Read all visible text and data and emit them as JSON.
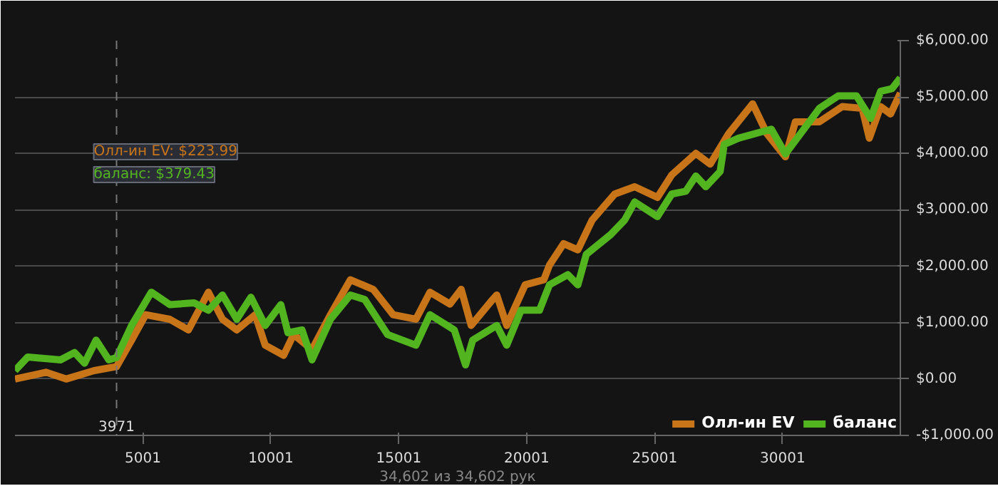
{
  "chart_data": {
    "type": "line",
    "xlim": [
      1,
      34602
    ],
    "ylim": [
      -1000,
      6000
    ],
    "xticks": [
      5001,
      10001,
      15001,
      20001,
      25001,
      30001
    ],
    "yticks": [
      {
        "value": -1000,
        "label": "-$1,000.00"
      },
      {
        "value": 0,
        "label": "$0.00"
      },
      {
        "value": 1000,
        "label": "$1,000.00"
      },
      {
        "value": 2000,
        "label": "$2,000.00"
      },
      {
        "value": 3000,
        "label": "$3,000.00"
      },
      {
        "value": 4000,
        "label": "$4,000.00"
      },
      {
        "value": 5000,
        "label": "$5,000.00"
      },
      {
        "value": 6000,
        "label": "$6,000.00"
      }
    ],
    "grid": "y",
    "legend": "bottom right",
    "line_style": "solid",
    "ref_lines": [
      {
        "axis": "x",
        "value": 3971,
        "label": "3971",
        "color": "#777777",
        "line_style": "dashed"
      }
    ],
    "annotations": [
      "Олл-ин EV: $223.99",
      "баланс: $379.43",
      "34,602 из 34,602 рук"
    ],
    "series": [
      {
        "name": "Олл-ин EV",
        "color": "#c8751a",
        "x": [
          1,
          1220,
          2000,
          3100,
          3971,
          4560,
          5110,
          6050,
          6780,
          7560,
          8110,
          8670,
          9390,
          9780,
          10500,
          10890,
          11610,
          12330,
          13110,
          14000,
          14780,
          15670,
          16220,
          17000,
          17440,
          17830,
          18670,
          18830,
          19220,
          19940,
          20670,
          20890,
          21440,
          22000,
          22560,
          23440,
          24220,
          25110,
          25670,
          26610,
          27170,
          27890,
          28830,
          29390,
          30110,
          30500,
          31440,
          32330,
          33110,
          33390,
          33830,
          34220,
          34602
        ],
        "values": [
          0,
          120,
          0,
          150,
          220,
          690,
          1140,
          1060,
          870,
          1540,
          1060,
          870,
          1140,
          600,
          420,
          790,
          520,
          1140,
          1760,
          1590,
          1140,
          1060,
          1540,
          1330,
          1590,
          950,
          1410,
          1490,
          950,
          1670,
          1760,
          2020,
          2400,
          2290,
          2820,
          3280,
          3410,
          3220,
          3620,
          4000,
          3810,
          4350,
          4880,
          4350,
          3940,
          4560,
          4560,
          4830,
          4800,
          4270,
          4830,
          4700,
          5070
        ]
      },
      {
        "name": "баланс",
        "color": "#52b520",
        "x": [
          1,
          500,
          1780,
          2330,
          2720,
          3170,
          3670,
          3971,
          4560,
          5330,
          6050,
          7000,
          7560,
          8110,
          8670,
          9220,
          9780,
          10390,
          10670,
          11220,
          11610,
          12330,
          13110,
          13670,
          14560,
          15670,
          16220,
          17170,
          17610,
          17890,
          18830,
          19220,
          19780,
          20500,
          20890,
          21610,
          22000,
          22330,
          23280,
          23830,
          24220,
          25110,
          25670,
          26220,
          26610,
          27000,
          27560,
          27720,
          28280,
          29560,
          30110,
          31440,
          32170,
          32890,
          33440,
          33830,
          34280,
          34602
        ],
        "values": [
          150,
          390,
          340,
          470,
          280,
          690,
          340,
          380,
          950,
          1540,
          1320,
          1350,
          1220,
          1490,
          1060,
          1450,
          950,
          1320,
          820,
          870,
          340,
          1060,
          1490,
          1410,
          790,
          600,
          1140,
          870,
          250,
          690,
          950,
          600,
          1220,
          1220,
          1670,
          1850,
          1670,
          2210,
          2560,
          2820,
          3140,
          2880,
          3280,
          3330,
          3600,
          3410,
          3680,
          4160,
          4270,
          4430,
          3990,
          4800,
          5020,
          5020,
          4620,
          5100,
          5150,
          5340
        ]
      }
    ]
  }
}
